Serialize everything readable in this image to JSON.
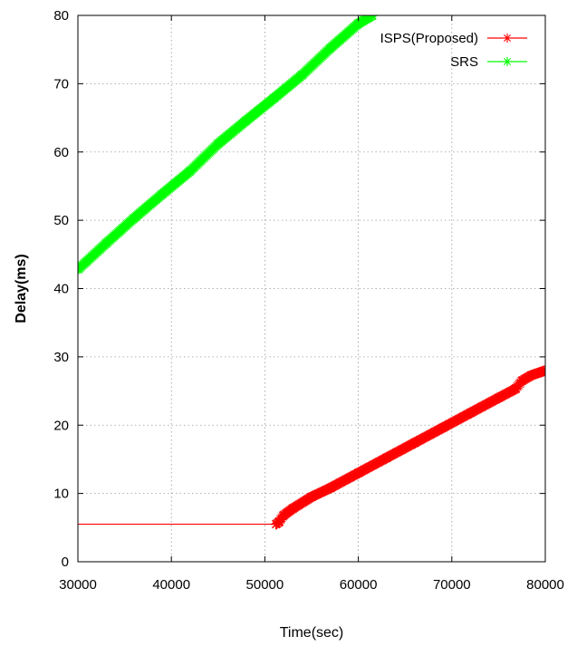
{
  "chart_data": {
    "type": "line",
    "title": "",
    "xlabel": "Time(sec)",
    "ylabel": "Delay(ms)",
    "xlim": [
      30000,
      80000
    ],
    "ylim": [
      0,
      80
    ],
    "xticks": [
      30000,
      40000,
      50000,
      60000,
      70000,
      80000
    ],
    "yticks": [
      0,
      10,
      20,
      30,
      40,
      50,
      60,
      70,
      80
    ],
    "grid": true,
    "legend_position": "top-right",
    "series": [
      {
        "name": "ISPS(Proposed)",
        "color": "#ff0000",
        "marker": "star",
        "x": [
          30000,
          51200,
          51500,
          52000,
          53000,
          55000,
          57000,
          60000,
          63000,
          66000,
          69000,
          72000,
          75000,
          76800,
          77500,
          78500,
          80000
        ],
        "y": [
          5.5,
          5.5,
          5.8,
          6.8,
          7.8,
          9.5,
          10.8,
          13.0,
          15.2,
          17.4,
          19.6,
          21.8,
          24.0,
          25.3,
          26.5,
          27.3,
          28.0
        ],
        "marker_from_x": 51200
      },
      {
        "name": "SRS",
        "color": "#00ff00",
        "marker": "star",
        "x": [
          30000,
          33000,
          36000,
          39000,
          42000,
          45000,
          48000,
          51000,
          54000,
          57000,
          60000,
          61500
        ],
        "y": [
          42.8,
          46.6,
          50.3,
          53.8,
          57.2,
          61.2,
          64.6,
          67.9,
          71.3,
          75.2,
          78.8,
          80.0
        ],
        "marker_from_x": 30000
      }
    ]
  }
}
